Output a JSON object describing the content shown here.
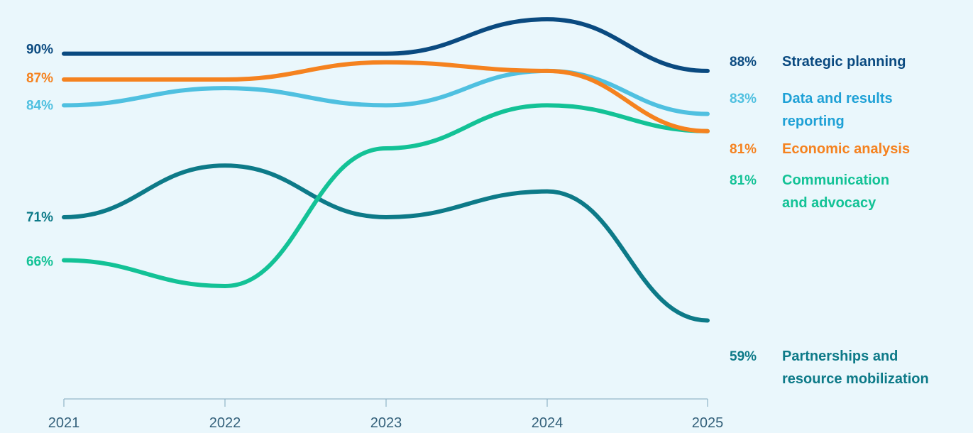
{
  "chart_data": {
    "type": "line",
    "x": [
      "2021",
      "2022",
      "2023",
      "2024",
      "2025"
    ],
    "ylim": [
      55,
      95
    ],
    "grid": false,
    "legend": "right",
    "series": [
      {
        "name": "Strategic planning",
        "color": "#0a4a80",
        "values": [
          90,
          90,
          90,
          94,
          88
        ],
        "start_label": "90%",
        "end_label": "88%",
        "name_lines": [
          "Strategic planning"
        ]
      },
      {
        "name": "Data and results reporting",
        "color": "#4fc0e0",
        "values": [
          84,
          86,
          84,
          88,
          83
        ],
        "start_label": "84%",
        "end_label": "83%",
        "name_lines": [
          "Data and results",
          "reporting"
        ]
      },
      {
        "name": "Economic analysis",
        "color": "#f5821f",
        "values": [
          87,
          87,
          89,
          88,
          81
        ],
        "start_label": "87%",
        "end_label": "81%",
        "name_lines": [
          "Economic analysis"
        ]
      },
      {
        "name": "Communication and advocacy",
        "color": "#13c296",
        "values": [
          66,
          63,
          79,
          84,
          81
        ],
        "start_label": "66%",
        "end_label": "81%",
        "name_lines": [
          "Communication",
          "and advocacy"
        ]
      },
      {
        "name": "Partnerships and resource mobilization",
        "color": "#0d7a88",
        "values": [
          71,
          77,
          71,
          74,
          59
        ],
        "start_label": "71%",
        "end_label": "59%",
        "name_lines": [
          "Partnerships and",
          "resource mobilization"
        ]
      }
    ]
  }
}
